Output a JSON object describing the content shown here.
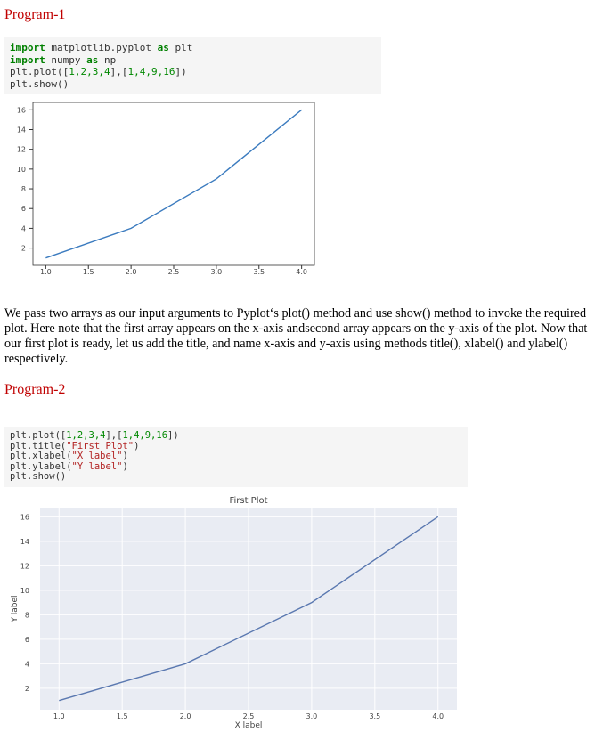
{
  "program1_heading": "Program-1",
  "code1": [
    [
      {
        "text": "import",
        "color": "#008000"
      },
      {
        "text": " matplotlib.pyplot ",
        "color": "#333333"
      },
      {
        "text": "as",
        "color": "#008000"
      },
      {
        "text": " plt",
        "color": "#333333"
      }
    ],
    [
      {
        "text": "import",
        "color": "#008000"
      },
      {
        "text": " numpy ",
        "color": "#333333"
      },
      {
        "text": "as",
        "color": "#008000"
      },
      {
        "text": " np",
        "color": "#333333"
      }
    ],
    [
      {
        "text": "plt.plot([",
        "color": "#333333"
      },
      {
        "text": "1,2,3,4",
        "color": "#008800"
      },
      {
        "text": "],[",
        "color": "#333333"
      },
      {
        "text": "1,4,9,16",
        "color": "#008800"
      },
      {
        "text": "])",
        "color": "#333333"
      }
    ],
    [
      {
        "text": "plt.show()",
        "color": "#333333"
      }
    ]
  ],
  "chart_data": [
    {
      "type": "line",
      "x": [
        1,
        2,
        3,
        4
      ],
      "series": [
        {
          "values": [
            1,
            4,
            9,
            16
          ],
          "color": "#3b7bbf"
        }
      ],
      "xlim": [
        0.85,
        4.15
      ],
      "ylim": [
        0.25,
        16.75
      ],
      "xticks": [
        {
          "value": 1,
          "label": "1.0"
        },
        {
          "value": 1.5,
          "label": "1.5"
        },
        {
          "value": 2,
          "label": "2.0"
        },
        {
          "value": 2.5,
          "label": "2.5"
        },
        {
          "value": 3,
          "label": "3.0"
        },
        {
          "value": 3.5,
          "label": "3.5"
        },
        {
          "value": 4,
          "label": "4.0"
        }
      ],
      "yticks": [
        2,
        4,
        6,
        8,
        10,
        12,
        14,
        16
      ],
      "grid": false,
      "background": "#ffffff"
    },
    {
      "type": "line",
      "title": "First Plot",
      "x_label": "X label",
      "y_label": "Y label",
      "x": [
        1,
        2,
        3,
        4
      ],
      "series": [
        {
          "values": [
            1,
            4,
            9,
            16
          ],
          "color": "#5a78b0"
        }
      ],
      "xlim": [
        0.85,
        4.15
      ],
      "ylim": [
        0.25,
        16.75
      ],
      "xticks": [
        {
          "value": 1,
          "label": "1.0"
        },
        {
          "value": 1.5,
          "label": "1.5"
        },
        {
          "value": 2,
          "label": "2.0"
        },
        {
          "value": 2.5,
          "label": "2.5"
        },
        {
          "value": 3,
          "label": "3.0"
        },
        {
          "value": 3.5,
          "label": "3.5"
        },
        {
          "value": 4,
          "label": "4.0"
        }
      ],
      "yticks": [
        2,
        4,
        6,
        8,
        10,
        12,
        14,
        16
      ],
      "grid": true,
      "background": "#e9ecf3"
    }
  ],
  "paragraph": "We pass two arrays as our input arguments to Pyplot‘s plot() method and use show() method to invoke the required plot. Here note that the first array appears on the x-axis andsecond array appears on the y-axis of the plot. Now that our first plot is ready, let us add the title, and name x-axis and y-axis using methods title(), xlabel() and ylabel() respectively.",
  "program2_heading": "Program-2",
  "code2": [
    [
      {
        "text": "plt.plot([",
        "color": "#333333"
      },
      {
        "text": "1,2,3,4",
        "color": "#008800"
      },
      {
        "text": "],[",
        "color": "#333333"
      },
      {
        "text": "1,4,9,16",
        "color": "#008800"
      },
      {
        "text": "])",
        "color": "#333333"
      }
    ],
    [
      {
        "text": "plt.title(",
        "color": "#333333"
      },
      {
        "text": "\"First Plot\"",
        "color": "#b22222"
      },
      {
        "text": ")",
        "color": "#333333"
      }
    ],
    [
      {
        "text": "plt.xlabel(",
        "color": "#333333"
      },
      {
        "text": "\"X label\"",
        "color": "#b22222"
      },
      {
        "text": ")",
        "color": "#333333"
      }
    ],
    [
      {
        "text": "plt.ylabel(",
        "color": "#333333"
      },
      {
        "text": "\"Y label\"",
        "color": "#b22222"
      },
      {
        "text": ")",
        "color": "#333333"
      }
    ],
    [
      {
        "text": "plt.show()",
        "color": "#333333"
      }
    ]
  ]
}
